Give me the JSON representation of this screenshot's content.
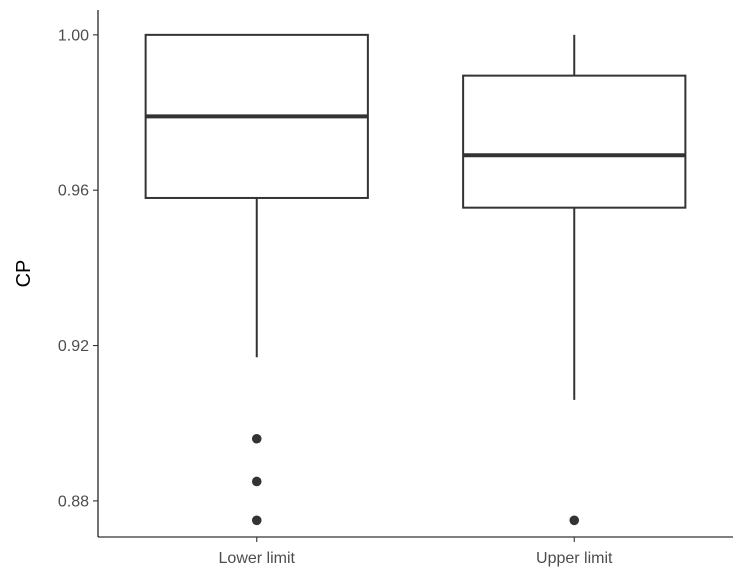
{
  "chart_data": {
    "type": "boxplot",
    "title": "",
    "xlabel": "",
    "ylabel": "CP",
    "ylim": [
      0.8707,
      1.0064
    ],
    "yticks": [
      0.88,
      0.92,
      0.96,
      1.0
    ],
    "ytick_labels": [
      "0.88",
      "0.92",
      "0.96",
      "1.00"
    ],
    "grid": false,
    "categories": [
      "Lower limit",
      "Upper limit"
    ],
    "boxes": [
      {
        "category": "Lower limit",
        "whisker_low": 0.917,
        "q1": 0.958,
        "median": 0.979,
        "q3": 1.0,
        "whisker_high": 1.0,
        "outliers": [
          0.896,
          0.885,
          0.875
        ]
      },
      {
        "category": "Upper limit",
        "whisker_low": 0.906,
        "q1": 0.9555,
        "median": 0.969,
        "q3": 0.9895,
        "whisker_high": 1.0,
        "outliers": [
          0.875
        ]
      }
    ],
    "colors": {
      "box_stroke": "#333333",
      "axis": "#000000",
      "tick_text": "#4d4d4d"
    }
  }
}
